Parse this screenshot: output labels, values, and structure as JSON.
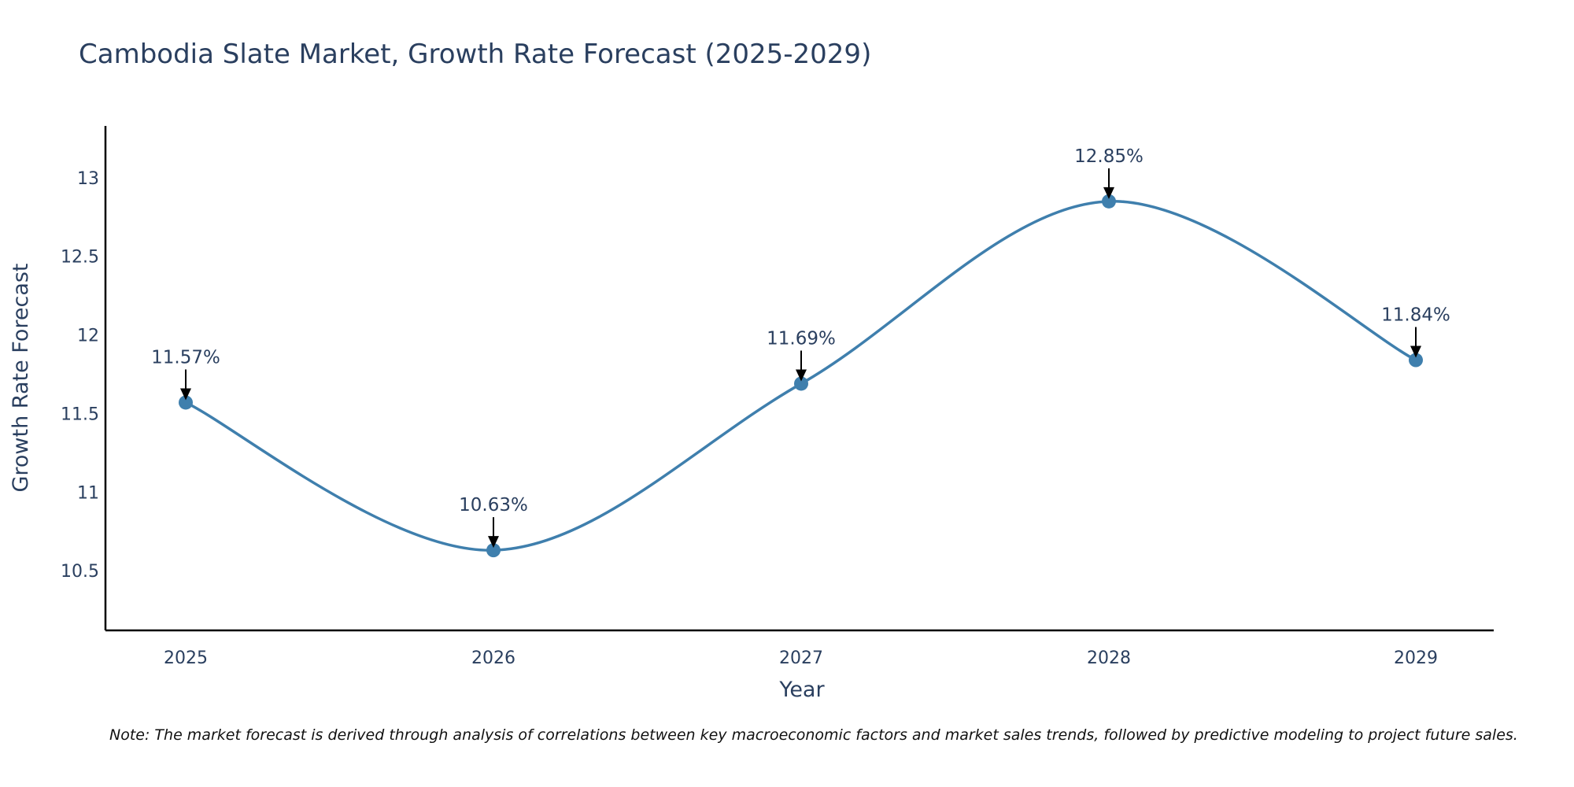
{
  "chart_data": {
    "type": "line",
    "title": "Cambodia Slate Market, Growth Rate Forecast (2025-2029)",
    "xlabel": "Year",
    "ylabel": "Growth Rate Forecast",
    "categories": [
      "2025",
      "2026",
      "2027",
      "2028",
      "2029"
    ],
    "values": [
      11.57,
      10.63,
      11.69,
      12.85,
      11.84
    ],
    "data_labels": [
      "11.57%",
      "10.63%",
      "11.69%",
      "12.85%",
      "11.84%"
    ],
    "yticks": [
      10.5,
      11,
      11.5,
      12,
      12.5,
      13
    ],
    "ytick_labels": [
      "10.5",
      "11",
      "11.5",
      "12",
      "12.5",
      "13"
    ],
    "ylim": [
      10.12,
      13.33
    ],
    "line_shape": "spline",
    "grid": false,
    "series_color": "#3f7fad",
    "arrow_color": "#000000",
    "note": "Note: The market forecast is derived through analysis of correlations between key macroeconomic factors and market sales trends, followed by predictive modeling to project future sales."
  }
}
